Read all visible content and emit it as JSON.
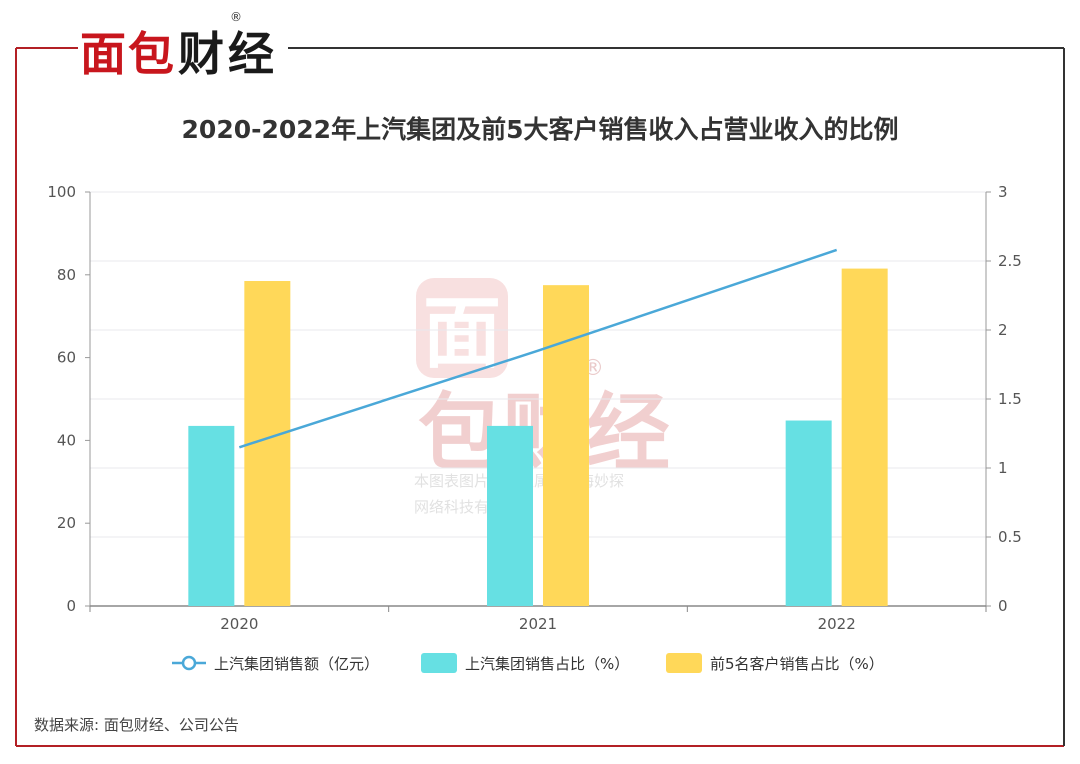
{
  "brand": {
    "name": "面包财经",
    "mark": "®",
    "colors": {
      "red": "#c8161d",
      "black": "#1a1a1a"
    }
  },
  "watermark": {
    "char_top": "面",
    "chars_bottom": "包财经",
    "mark": "®",
    "line1": "本图表图片著作权属于上海妙探",
    "line2": "网络科技有限公司"
  },
  "source": "数据来源: 面包财经、公司公告",
  "chart_data": {
    "type": "bar",
    "title": "2020-2022年上汽集团及前5大客户销售收入占营业收入的比例",
    "categories": [
      "2020",
      "2021",
      "2022"
    ],
    "y_left": {
      "min": 0,
      "max": 100,
      "ticks": [
        "0",
        "20",
        "40",
        "60",
        "80",
        "100"
      ]
    },
    "y_right": {
      "min": 0,
      "max": 3,
      "ticks": [
        "0",
        "0.5",
        "1",
        "1.5",
        "2",
        "2.5",
        "3"
      ]
    },
    "grid": true,
    "legend_position": "bottom",
    "series": [
      {
        "name": "上汽集团销售额（亿元）",
        "type": "line",
        "axis": "right",
        "color": "#4aa8d8",
        "values": [
          1.15,
          1.85,
          2.58
        ]
      },
      {
        "name": "上汽集团销售占比（%）",
        "type": "bar",
        "axis": "left",
        "color": "#66e0e3",
        "values": [
          43.5,
          43.5,
          44.8
        ]
      },
      {
        "name": "前5名客户销售占比（%）",
        "type": "bar",
        "axis": "left",
        "color": "#ffd859",
        "values": [
          78.5,
          77.5,
          81.5
        ]
      }
    ]
  }
}
